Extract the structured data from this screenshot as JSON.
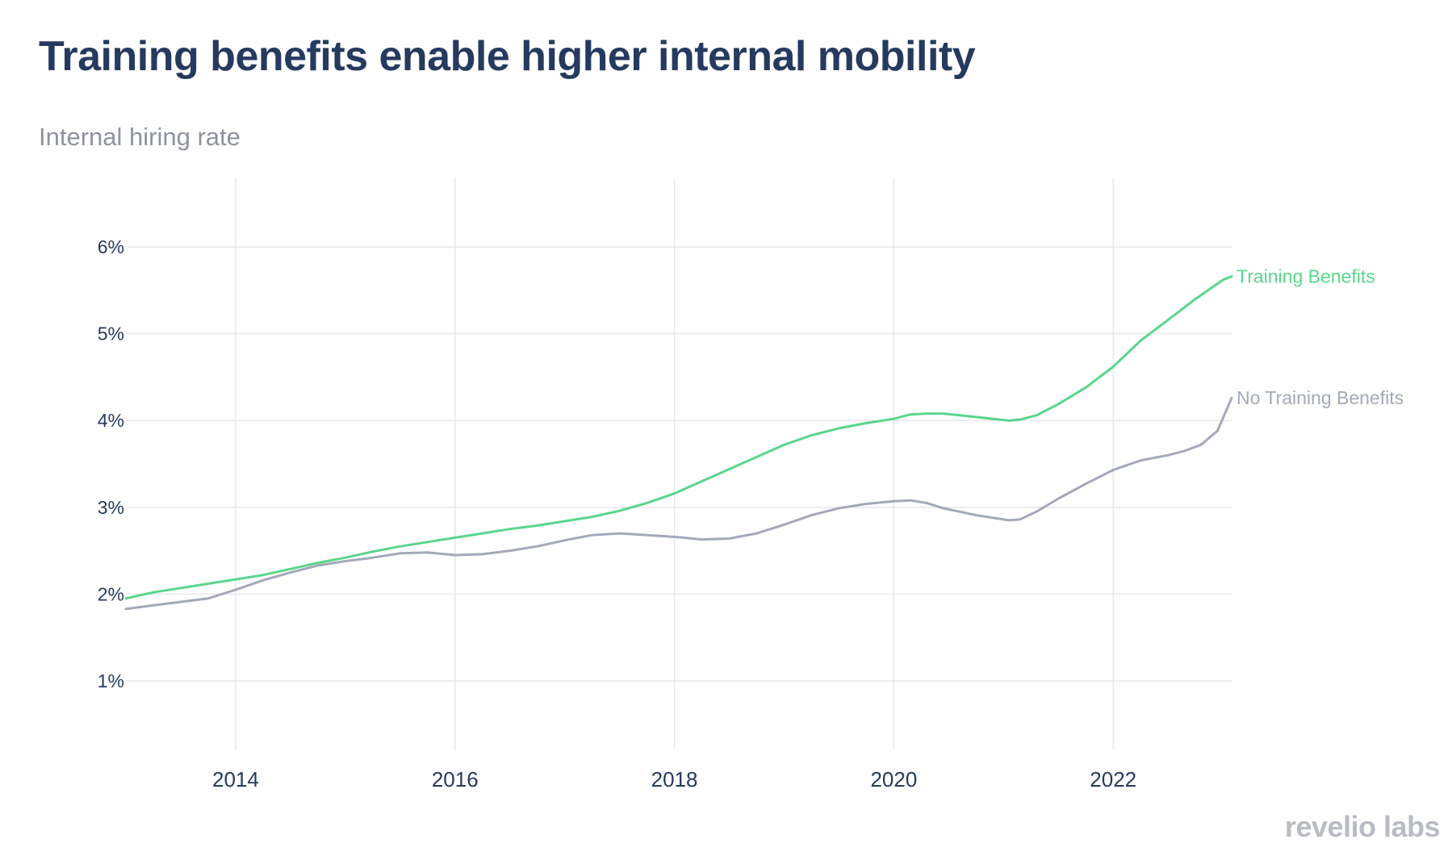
{
  "header": {
    "title": "Training benefits enable higher internal mobility",
    "subtitle": "Internal hiring rate"
  },
  "brand": {
    "name": "revelio labs"
  },
  "colors": {
    "training": "#5ad68c",
    "no_training": "#a4a9b8",
    "grid": "#e4e6ea",
    "tick_text": "#253a5e"
  },
  "chart_data": {
    "type": "line",
    "title": "Training benefits enable higher internal mobility",
    "subtitle": "Internal hiring rate",
    "xlabel": "",
    "ylabel": "",
    "xlim": [
      2013.0,
      2023.08
    ],
    "ylim": [
      0.2,
      6.8
    ],
    "x_ticks": [
      2014,
      2016,
      2018,
      2020,
      2022
    ],
    "x_tick_labels": [
      "2014",
      "2016",
      "2018",
      "2020",
      "2022"
    ],
    "y_ticks": [
      1,
      2,
      3,
      4,
      5,
      6
    ],
    "y_tick_labels": [
      "1%",
      "2%",
      "3%",
      "4%",
      "5%",
      "6%"
    ],
    "grid": true,
    "legend": "direct labels at line ends",
    "series": [
      {
        "name": "Training Benefits",
        "label": "Training Benefits",
        "color": "#5ad68c",
        "x": [
          2013.0,
          2013.25,
          2013.5,
          2013.75,
          2014.0,
          2014.25,
          2014.5,
          2014.75,
          2015.0,
          2015.25,
          2015.5,
          2015.75,
          2016.0,
          2016.25,
          2016.5,
          2016.75,
          2017.0,
          2017.25,
          2017.5,
          2017.75,
          2018.0,
          2018.25,
          2018.5,
          2018.75,
          2019.0,
          2019.25,
          2019.5,
          2019.75,
          2020.0,
          2020.15,
          2020.3,
          2020.45,
          2020.6,
          2020.75,
          2020.9,
          2021.05,
          2021.15,
          2021.3,
          2021.5,
          2021.75,
          2022.0,
          2022.25,
          2022.5,
          2022.75,
          2023.0,
          2023.08
        ],
        "values": [
          1.95,
          2.02,
          2.07,
          2.12,
          2.17,
          2.22,
          2.29,
          2.36,
          2.42,
          2.49,
          2.55,
          2.6,
          2.65,
          2.7,
          2.75,
          2.79,
          2.84,
          2.89,
          2.96,
          3.05,
          3.16,
          3.3,
          3.44,
          3.58,
          3.72,
          3.83,
          3.91,
          3.97,
          4.02,
          4.07,
          4.08,
          4.08,
          4.06,
          4.04,
          4.02,
          4.0,
          4.01,
          4.06,
          4.19,
          4.38,
          4.62,
          4.92,
          5.16,
          5.4,
          5.62,
          5.66
        ]
      },
      {
        "name": "No Training Benefits",
        "label": "No Training Benefits",
        "color": "#a4a9b8",
        "x": [
          2013.0,
          2013.25,
          2013.5,
          2013.75,
          2014.0,
          2014.25,
          2014.5,
          2014.75,
          2015.0,
          2015.25,
          2015.5,
          2015.75,
          2016.0,
          2016.25,
          2016.5,
          2016.75,
          2017.0,
          2017.25,
          2017.5,
          2017.75,
          2018.0,
          2018.25,
          2018.5,
          2018.75,
          2019.0,
          2019.25,
          2019.5,
          2019.75,
          2020.0,
          2020.15,
          2020.3,
          2020.45,
          2020.6,
          2020.75,
          2020.9,
          2021.05,
          2021.15,
          2021.3,
          2021.5,
          2021.75,
          2022.0,
          2022.25,
          2022.5,
          2022.65,
          2022.8,
          2022.95,
          2023.08
        ],
        "values": [
          1.83,
          1.87,
          1.91,
          1.95,
          2.05,
          2.16,
          2.25,
          2.33,
          2.38,
          2.42,
          2.47,
          2.48,
          2.45,
          2.46,
          2.5,
          2.55,
          2.62,
          2.68,
          2.7,
          2.68,
          2.66,
          2.63,
          2.64,
          2.7,
          2.8,
          2.91,
          2.99,
          3.04,
          3.07,
          3.08,
          3.05,
          2.99,
          2.95,
          2.91,
          2.88,
          2.85,
          2.86,
          2.95,
          3.1,
          3.27,
          3.43,
          3.54,
          3.6,
          3.65,
          3.72,
          3.88,
          4.26
        ]
      }
    ]
  }
}
